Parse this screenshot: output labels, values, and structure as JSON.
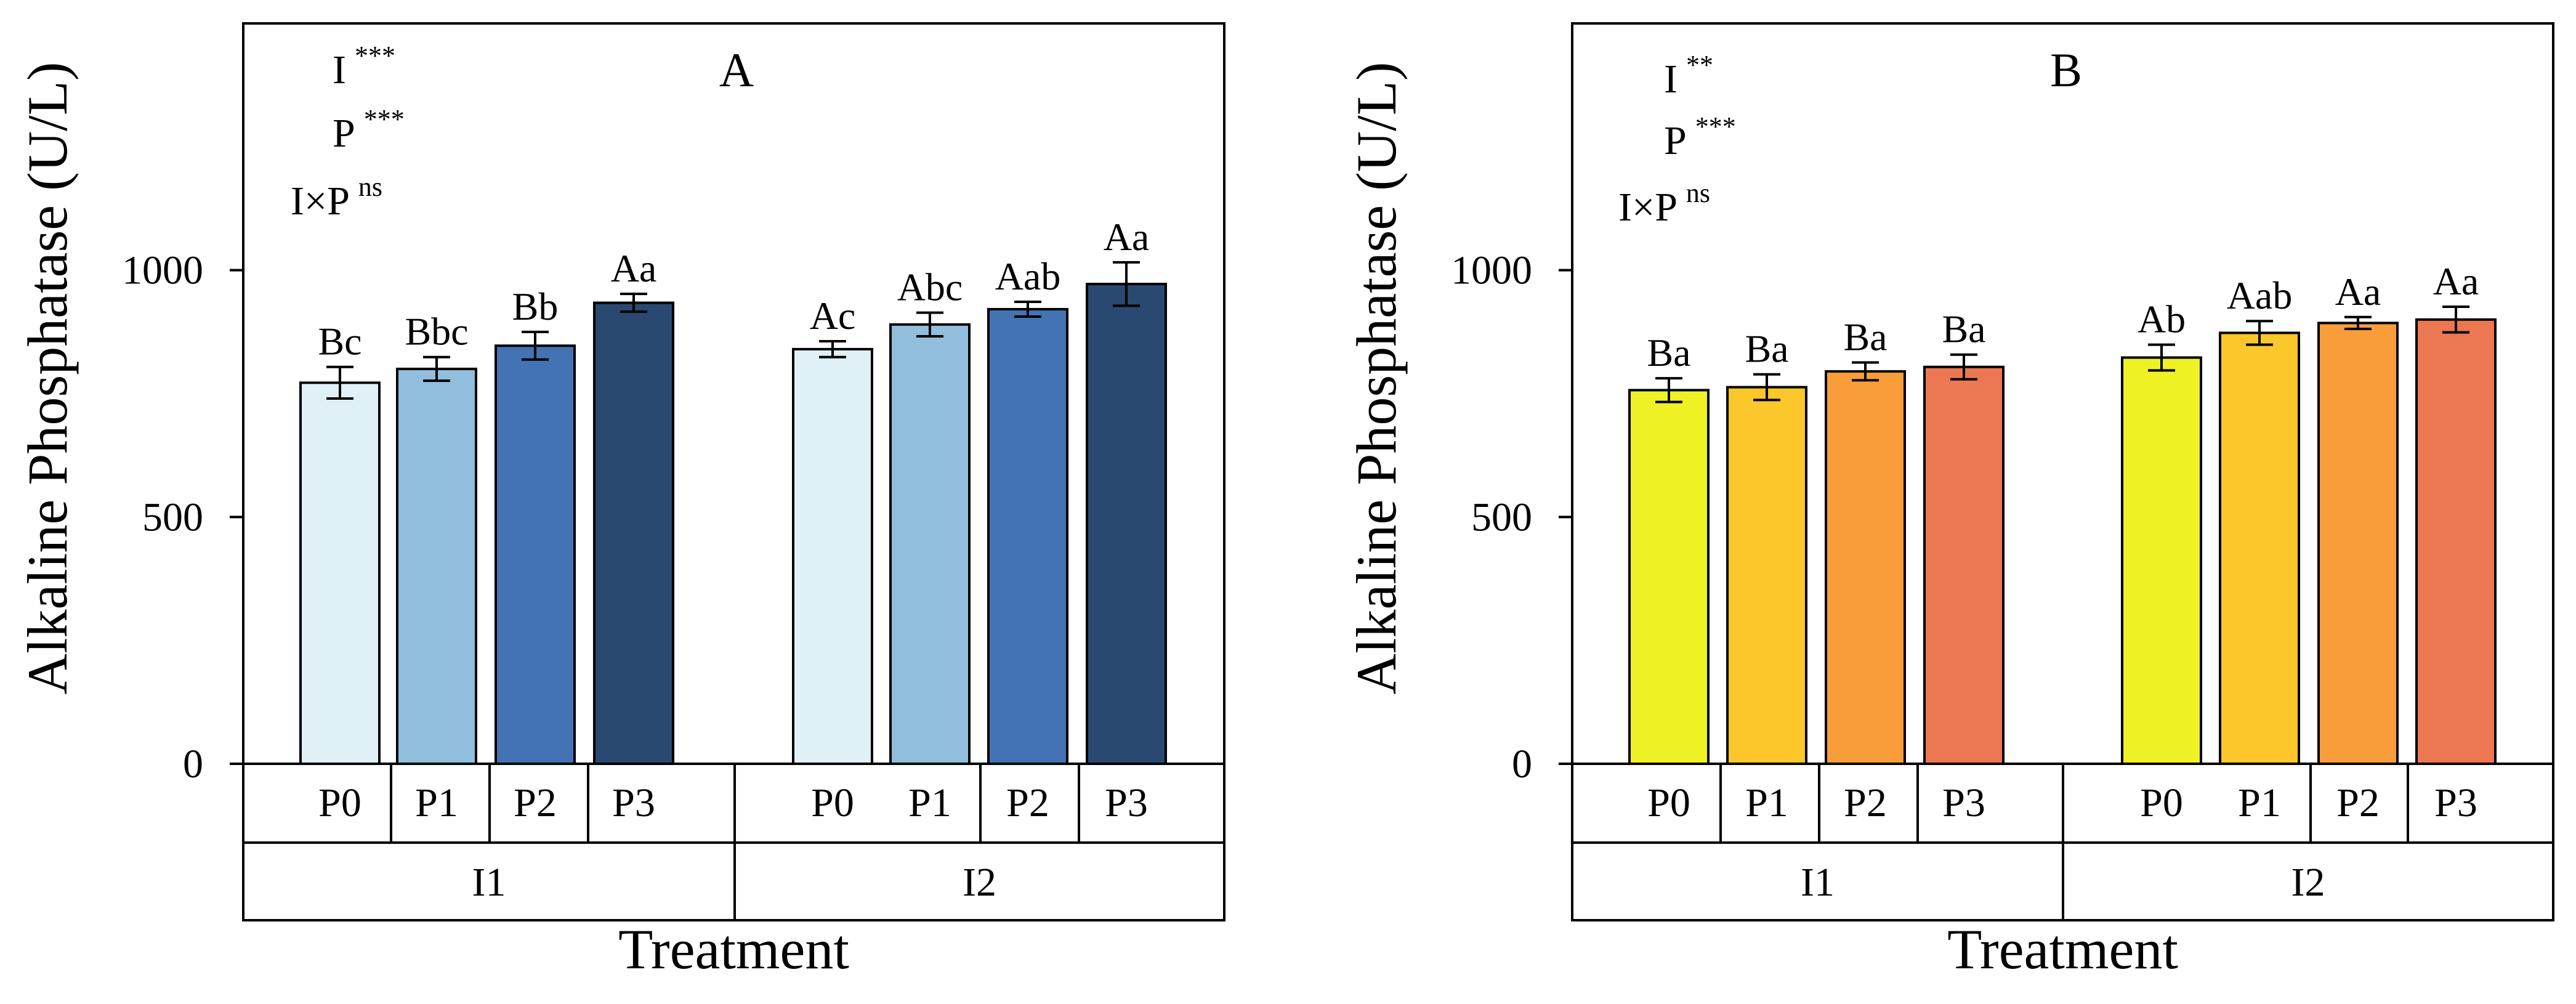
{
  "chart_data": [
    {
      "type": "bar",
      "panel_label": "A",
      "ylabel": "Alkaline Phosphatase (U/L)",
      "xlabel": "Treatment",
      "ylim": [
        0,
        1500
      ],
      "yticks": [
        "0",
        "500",
        "1000"
      ],
      "groups": [
        "I1",
        "I2"
      ],
      "categories": [
        "P0",
        "P1",
        "P2",
        "P3"
      ],
      "colors": [
        "#dff1f7",
        "#91bedc",
        "#4473b4",
        "#2a4970"
      ],
      "stats": [
        {
          "term": "I",
          "sig": "***"
        },
        {
          "term": "P",
          "sig": "***"
        },
        {
          "term": "I×P",
          "sig": "ns"
        }
      ],
      "series": [
        {
          "group": "I1",
          "values": [
            772,
            800,
            847,
            934
          ],
          "errors": [
            32,
            24,
            28,
            18
          ],
          "labels": [
            "Bc",
            "Bbc",
            "Bb",
            "Aa"
          ]
        },
        {
          "group": "I2",
          "values": [
            840,
            890,
            921,
            972
          ],
          "errors": [
            16,
            24,
            15,
            44
          ],
          "labels": [
            "Ac",
            "Abc",
            "Aab",
            "Aa"
          ]
        }
      ]
    },
    {
      "type": "bar",
      "panel_label": "B",
      "ylabel": "Alkaline Phosphatase (U/L)",
      "xlabel": "Treatment",
      "ylim": [
        0,
        1500
      ],
      "yticks": [
        "0",
        "500",
        "1000"
      ],
      "groups": [
        "I1",
        "I2"
      ],
      "categories": [
        "P0",
        "P1",
        "P2",
        "P3"
      ],
      "colors": [
        "#eef224",
        "#fbc72a",
        "#f99d3a",
        "#eb7852"
      ],
      "stats": [
        {
          "term": "I",
          "sig": "**"
        },
        {
          "term": "P",
          "sig": "***"
        },
        {
          "term": "I×P",
          "sig": "ns"
        }
      ],
      "series": [
        {
          "group": "I1",
          "values": [
            757,
            763,
            795,
            804
          ],
          "errors": [
            24,
            26,
            18,
            25
          ],
          "labels": [
            "Ba",
            "Ba",
            "Ba",
            "Ba"
          ]
        },
        {
          "group": "I2",
          "values": [
            823,
            873,
            893,
            900
          ],
          "errors": [
            26,
            24,
            12,
            26
          ],
          "labels": [
            "Ab",
            "Aab",
            "Aa",
            "Aa"
          ]
        }
      ]
    }
  ]
}
